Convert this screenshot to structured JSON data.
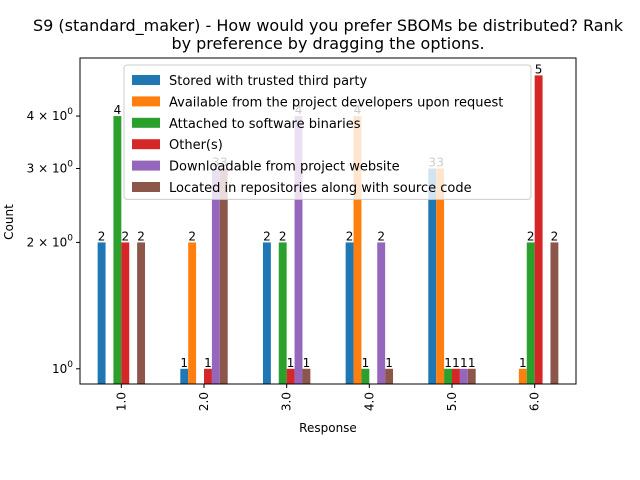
{
  "chart_data": {
    "type": "bar",
    "title_line1": "S9 (standard_maker) - How would you prefer SBOMs be distributed? Rank",
    "title_line2": "by preference by dragging the options.",
    "xlabel": "Response",
    "ylabel": "Count",
    "yscale": "log",
    "ylim": [
      0.92,
      5.5
    ],
    "yticks": [
      {
        "value": 1,
        "label": "10",
        "sup": "0",
        "prefix": ""
      },
      {
        "value": 2,
        "label": "10",
        "sup": "0",
        "prefix": "2 × "
      },
      {
        "value": 3,
        "label": "10",
        "sup": "0",
        "prefix": "3 × "
      },
      {
        "value": 4,
        "label": "10",
        "sup": "0",
        "prefix": "4 × "
      }
    ],
    "categories": [
      "1.0",
      "2.0",
      "3.0",
      "4.0",
      "5.0",
      "6.0"
    ],
    "legend_position": "upper-center",
    "series": [
      {
        "name": "Stored with trusted third party",
        "color": "#1f77b4",
        "values": [
          2,
          1,
          2,
          2,
          3,
          null
        ]
      },
      {
        "name": "Available from the project developers upon request",
        "color": "#ff7f0e",
        "values": [
          null,
          2,
          null,
          4,
          3,
          1
        ]
      },
      {
        "name": "Attached to software binaries",
        "color": "#2ca02c",
        "values": [
          4,
          null,
          2,
          1,
          1,
          2
        ]
      },
      {
        "name": "Other(s)",
        "color": "#d62728",
        "values": [
          2,
          1,
          1,
          null,
          1,
          5
        ]
      },
      {
        "name": "Downloadable from project website",
        "color": "#9467bd",
        "values": [
          null,
          3,
          4,
          2,
          1,
          null
        ]
      },
      {
        "name": "Located in repositories along with source code",
        "color": "#8c564b",
        "values": [
          2,
          3,
          1,
          1,
          1,
          2
        ]
      }
    ]
  }
}
